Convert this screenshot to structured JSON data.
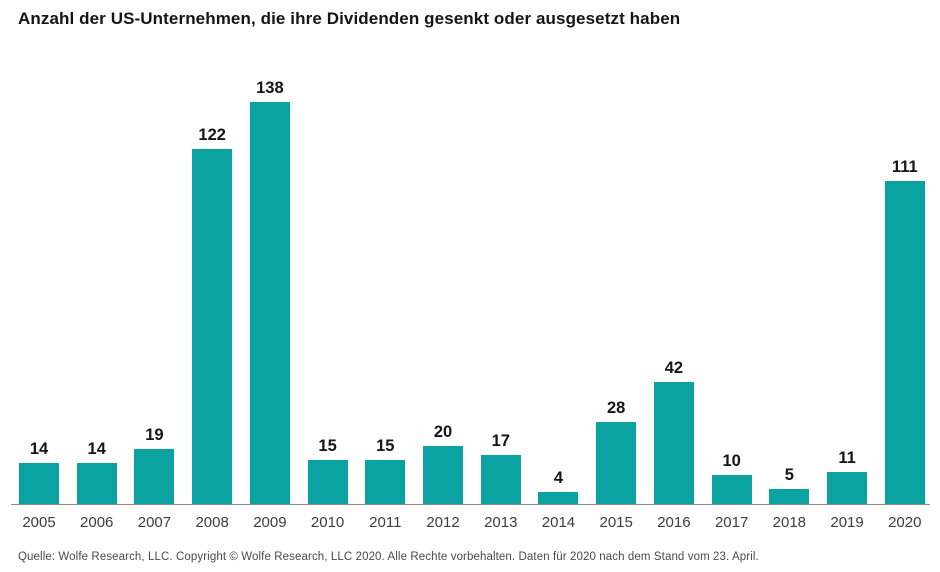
{
  "title": "Anzahl der US-Unternehmen, die ihre Dividenden gesenkt oder ausgesetzt haben",
  "source": "Quelle: Wolfe Research, LLC. Copyright © Wolfe Research, LLC 2020. Alle Rechte vorbehalten. Daten für 2020 nach dem Stand vom 23. April.",
  "colors": {
    "bar": "#0aa3a2",
    "axis": "#8a8a8a",
    "title_text": "#151515",
    "value_label_text": "#151515",
    "tick_text": "#3d3d3d",
    "source_text": "#4a4a4a",
    "background": "#ffffff"
  },
  "chart_data": {
    "type": "bar",
    "title": "Anzahl der US-Unternehmen, die ihre Dividenden gesenkt oder ausgesetzt haben",
    "categories": [
      "2005",
      "2006",
      "2007",
      "2008",
      "2009",
      "2010",
      "2011",
      "2012",
      "2013",
      "2014",
      "2015",
      "2016",
      "2017",
      "2018",
      "2019",
      "2020"
    ],
    "values": [
      14,
      14,
      19,
      122,
      138,
      15,
      15,
      20,
      17,
      4,
      28,
      42,
      10,
      5,
      11,
      111
    ],
    "xlabel": "",
    "ylabel": "",
    "ylim": [
      0,
      138
    ],
    "grid": false,
    "legend": "none",
    "value_labels": true,
    "bar_color": "#0aa3a2",
    "source": "Quelle: Wolfe Research, LLC. Copyright © Wolfe Research, LLC 2020. Alle Rechte vorbehalten. Daten für 2020 nach dem Stand vom 23. April."
  }
}
